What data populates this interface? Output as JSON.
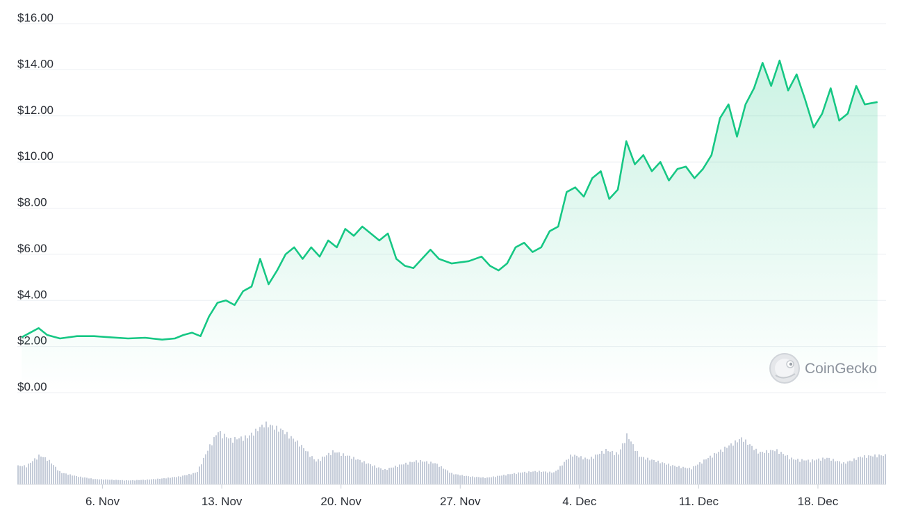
{
  "chart_data": {
    "type": "area",
    "title": "",
    "xlabel": "",
    "ylabel": "",
    "x_start": "2023-11-01",
    "x_end": "2023-12-22",
    "x_ticks": [
      {
        "date": "2023-11-06",
        "label": "6. Nov"
      },
      {
        "date": "2023-11-13",
        "label": "13. Nov"
      },
      {
        "date": "2023-11-20",
        "label": "20. Nov"
      },
      {
        "date": "2023-11-27",
        "label": "27. Nov"
      },
      {
        "date": "2023-12-04",
        "label": "4. Dec"
      },
      {
        "date": "2023-12-11",
        "label": "11. Dec"
      },
      {
        "date": "2023-12-18",
        "label": "18. Dec"
      }
    ],
    "y_ticks": [
      {
        "value": 0,
        "label": "$0.00"
      },
      {
        "value": 2,
        "label": "$2.00"
      },
      {
        "value": 4,
        "label": "$4.00"
      },
      {
        "value": 6,
        "label": "$6.00"
      },
      {
        "value": 8,
        "label": "$8.00"
      },
      {
        "value": 10,
        "label": "$10.00"
      },
      {
        "value": 12,
        "label": "$12.00"
      },
      {
        "value": 14,
        "label": "$14.00"
      },
      {
        "value": 16,
        "label": "$16.00"
      }
    ],
    "ylim": [
      0,
      16
    ],
    "grid": true,
    "legend": "none",
    "colors": {
      "line": "#16c784",
      "fill": "#16c784",
      "volume": "#c4cbd8",
      "grid": "#eceff3"
    },
    "series": [
      {
        "values": [
          [
            "2023-11-01",
            2.4
          ],
          [
            "2023-11-01",
            2.6
          ],
          [
            "2023-11-02",
            2.8
          ],
          [
            "2023-11-02",
            2.5
          ],
          [
            "2023-11-03",
            2.35
          ],
          [
            "2023-11-04",
            2.45
          ],
          [
            "2023-11-05",
            2.45
          ],
          [
            "2023-11-06",
            2.4
          ],
          [
            "2023-11-07",
            2.35
          ],
          [
            "2023-11-08",
            2.38
          ],
          [
            "2023-11-09",
            2.3
          ],
          [
            "2023-11-10",
            2.35
          ],
          [
            "2023-11-10",
            2.5
          ],
          [
            "2023-11-11",
            2.6
          ],
          [
            "2023-11-11",
            2.45
          ],
          [
            "2023-11-12",
            3.3
          ],
          [
            "2023-11-12",
            3.9
          ],
          [
            "2023-11-13",
            4.0
          ],
          [
            "2023-11-13",
            3.8
          ],
          [
            "2023-11-14",
            4.4
          ],
          [
            "2023-11-14",
            4.6
          ],
          [
            "2023-11-15",
            5.8
          ],
          [
            "2023-11-15",
            4.7
          ],
          [
            "2023-11-16",
            5.3
          ],
          [
            "2023-11-16",
            6.0
          ],
          [
            "2023-11-17",
            6.3
          ],
          [
            "2023-11-17",
            5.8
          ],
          [
            "2023-11-18",
            6.3
          ],
          [
            "2023-11-18",
            5.9
          ],
          [
            "2023-11-19",
            6.6
          ],
          [
            "2023-11-19",
            6.3
          ],
          [
            "2023-11-20",
            7.1
          ],
          [
            "2023-11-20",
            6.8
          ],
          [
            "2023-11-21",
            7.2
          ],
          [
            "2023-11-21",
            6.9
          ],
          [
            "2023-11-22",
            6.6
          ],
          [
            "2023-11-22",
            6.9
          ],
          [
            "2023-11-23",
            5.8
          ],
          [
            "2023-11-23",
            5.5
          ],
          [
            "2023-11-24",
            5.4
          ],
          [
            "2023-11-24",
            5.8
          ],
          [
            "2023-11-25",
            6.2
          ],
          [
            "2023-11-25",
            5.8
          ],
          [
            "2023-11-26",
            5.6
          ],
          [
            "2023-11-27",
            5.7
          ],
          [
            "2023-11-28",
            5.9
          ],
          [
            "2023-11-28",
            5.5
          ],
          [
            "2023-11-29",
            5.3
          ],
          [
            "2023-11-29",
            5.6
          ],
          [
            "2023-11-30",
            6.3
          ],
          [
            "2023-11-30",
            6.5
          ],
          [
            "2023-12-01",
            6.1
          ],
          [
            "2023-12-01",
            6.3
          ],
          [
            "2023-12-02",
            7.0
          ],
          [
            "2023-12-02",
            7.2
          ],
          [
            "2023-12-03",
            8.7
          ],
          [
            "2023-12-03",
            8.9
          ],
          [
            "2023-12-04",
            8.5
          ],
          [
            "2023-12-04",
            9.3
          ],
          [
            "2023-12-05",
            9.6
          ],
          [
            "2023-12-05",
            8.4
          ],
          [
            "2023-12-06",
            8.8
          ],
          [
            "2023-12-06",
            10.9
          ],
          [
            "2023-12-07",
            9.9
          ],
          [
            "2023-12-07",
            10.3
          ],
          [
            "2023-12-08",
            9.6
          ],
          [
            "2023-12-08",
            10.0
          ],
          [
            "2023-12-09",
            9.2
          ],
          [
            "2023-12-09",
            9.7
          ],
          [
            "2023-12-10",
            9.8
          ],
          [
            "2023-12-10",
            9.3
          ],
          [
            "2023-12-11",
            9.7
          ],
          [
            "2023-12-11",
            10.3
          ],
          [
            "2023-12-12",
            11.9
          ],
          [
            "2023-12-12",
            12.5
          ],
          [
            "2023-12-13",
            11.1
          ],
          [
            "2023-12-13",
            12.5
          ],
          [
            "2023-12-14",
            13.2
          ],
          [
            "2023-12-14",
            14.3
          ],
          [
            "2023-12-15",
            13.3
          ],
          [
            "2023-12-15",
            14.4
          ],
          [
            "2023-12-16",
            13.1
          ],
          [
            "2023-12-16",
            13.8
          ],
          [
            "2023-12-17",
            12.7
          ],
          [
            "2023-12-17",
            11.5
          ],
          [
            "2023-12-18",
            12.1
          ],
          [
            "2023-12-18",
            13.2
          ],
          [
            "2023-12-19",
            11.8
          ],
          [
            "2023-12-19",
            12.1
          ],
          [
            "2023-12-20",
            13.3
          ],
          [
            "2023-12-20",
            12.5
          ],
          [
            "2023-12-21",
            12.6
          ]
        ]
      }
    ],
    "volume": [
      [
        "2023-11-01",
        0.28
      ],
      [
        "2023-11-02",
        0.44
      ],
      [
        "2023-11-02",
        0.38
      ],
      [
        "2023-11-03",
        0.18
      ],
      [
        "2023-11-04",
        0.12
      ],
      [
        "2023-11-05",
        0.08
      ],
      [
        "2023-11-06",
        0.07
      ],
      [
        "2023-11-07",
        0.06
      ],
      [
        "2023-11-08",
        0.07
      ],
      [
        "2023-11-09",
        0.09
      ],
      [
        "2023-11-10",
        0.12
      ],
      [
        "2023-11-11",
        0.18
      ],
      [
        "2023-11-12",
        0.58
      ],
      [
        "2023-11-12",
        0.8
      ],
      [
        "2023-11-13",
        0.68
      ],
      [
        "2023-11-14",
        0.72
      ],
      [
        "2023-11-15",
        0.92
      ],
      [
        "2023-11-16",
        0.82
      ],
      [
        "2023-11-17",
        0.62
      ],
      [
        "2023-11-18",
        0.35
      ],
      [
        "2023-11-19",
        0.5
      ],
      [
        "2023-11-20",
        0.42
      ],
      [
        "2023-11-21",
        0.32
      ],
      [
        "2023-11-22",
        0.22
      ],
      [
        "2023-11-23",
        0.3
      ],
      [
        "2023-11-24",
        0.36
      ],
      [
        "2023-11-25",
        0.32
      ],
      [
        "2023-11-26",
        0.16
      ],
      [
        "2023-11-27",
        0.12
      ],
      [
        "2023-11-28",
        0.1
      ],
      [
        "2023-11-29",
        0.14
      ],
      [
        "2023-11-30",
        0.18
      ],
      [
        "2023-12-01",
        0.2
      ],
      [
        "2023-12-02",
        0.18
      ],
      [
        "2023-12-03",
        0.45
      ],
      [
        "2023-12-04",
        0.38
      ],
      [
        "2023-12-05",
        0.52
      ],
      [
        "2023-12-06",
        0.46
      ],
      [
        "2023-12-06",
        0.75
      ],
      [
        "2023-12-07",
        0.42
      ],
      [
        "2023-12-08",
        0.35
      ],
      [
        "2023-12-09",
        0.28
      ],
      [
        "2023-12-10",
        0.24
      ],
      [
        "2023-12-11",
        0.4
      ],
      [
        "2023-12-12",
        0.55
      ],
      [
        "2023-12-13",
        0.7
      ],
      [
        "2023-12-14",
        0.48
      ],
      [
        "2023-12-15",
        0.52
      ],
      [
        "2023-12-16",
        0.38
      ],
      [
        "2023-12-17",
        0.36
      ],
      [
        "2023-12-18",
        0.4
      ],
      [
        "2023-12-19",
        0.32
      ],
      [
        "2023-12-20",
        0.42
      ],
      [
        "2023-12-21",
        0.44
      ]
    ]
  },
  "watermark": {
    "text": "CoinGecko",
    "icon": "gecko-logo-icon"
  }
}
